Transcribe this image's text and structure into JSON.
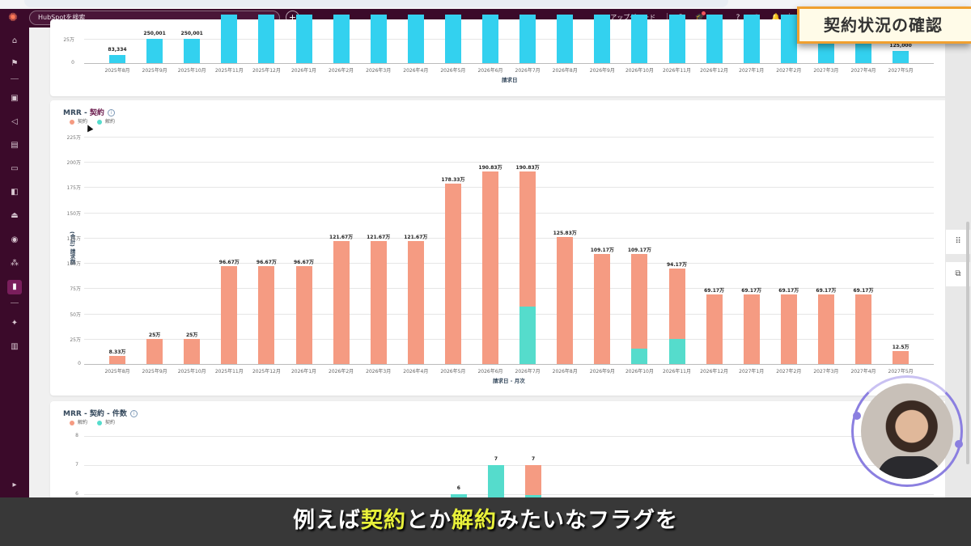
{
  "topbar": {
    "search_placeholder": "HubSpotを検索",
    "upgrade_label": "アップグレード",
    "icons": [
      "phone-icon",
      "academy-icon",
      "marketplace-icon",
      "help-icon",
      "settings-icon",
      "notifications-icon"
    ]
  },
  "overlay_title": "契約状況の確認",
  "sidebar": {
    "items": [
      "home-icon",
      "bookmark-icon",
      "contacts-icon",
      "marketing-icon",
      "content-icon",
      "commerce-icon",
      "service-icon",
      "automation-icon",
      "data-icon",
      "integrations-icon",
      "reports-icon",
      "breeze-icon",
      "workspaces-icon"
    ],
    "active": "reports-icon",
    "expand_icon": "expand-sidebar-icon"
  },
  "colors": {
    "brand_dark": "#3b0a2a",
    "bar_cyan": "#33d1ef",
    "contract_salmon": "#f59b82",
    "cancel_teal": "#55dccc",
    "banner_border": "#f0a030",
    "subtitle_highlight": "#e8f03a"
  },
  "chart_data": [
    {
      "type": "bar",
      "title": "",
      "xlabel": "請求日",
      "ylabel": "",
      "categories": [
        "2025年8月",
        "2025年9月",
        "2025年10月",
        "2025年11月",
        "2025年12月",
        "2026年1月",
        "2026年2月",
        "2026年3月",
        "2026年4月",
        "2026年5月",
        "2026年6月",
        "2026年7月",
        "2026年8月",
        "2026年9月",
        "2026年10月",
        "2026年11月",
        "2026年12月",
        "2027年1月",
        "2027年2月",
        "2027年3月",
        "2027年4月",
        "2027年5月"
      ],
      "values": [
        83334,
        250001,
        250001,
        null,
        null,
        null,
        null,
        null,
        null,
        null,
        null,
        null,
        null,
        null,
        null,
        null,
        null,
        null,
        null,
        null,
        null,
        125000
      ],
      "value_labels": [
        "83,334",
        "250,001",
        "250,001",
        "",
        "",
        "",
        "",
        "",
        "",
        "",
        "",
        "",
        "",
        "",
        "",
        "",
        "",
        "",
        "",
        "",
        "",
        "125,000"
      ],
      "yticks_visible": [
        "0",
        "25万"
      ],
      "note": "Chart is scrolled; only the lower portion is visible, taller bars are clipped by the top of the viewport."
    },
    {
      "type": "bar",
      "stacked": true,
      "title": "MRR - 契約",
      "xlabel": "請求日 - 月次",
      "ylabel": "(合計) 請求額",
      "ylim": [
        0,
        2250000
      ],
      "yticks": [
        "0",
        "25万",
        "50万",
        "75万",
        "100万",
        "125万",
        "150万",
        "175万",
        "200万",
        "225万"
      ],
      "legend": [
        "契約",
        "解約"
      ],
      "categories": [
        "2025年8月",
        "2025年9月",
        "2025年10月",
        "2025年11月",
        "2025年12月",
        "2026年1月",
        "2026年2月",
        "2026年3月",
        "2026年4月",
        "2026年5月",
        "2026年6月",
        "2026年7月",
        "2026年8月",
        "2026年9月",
        "2026年10月",
        "2026年11月",
        "2026年12月",
        "2027年1月",
        "2027年2月",
        "2027年3月",
        "2027年4月",
        "2027年5月"
      ],
      "series": [
        {
          "name": "契約",
          "values": [
            83300,
            250000,
            250000,
            966700,
            966700,
            966700,
            1216700,
            1216700,
            1216700,
            1783300,
            1908300,
            1338300,
            1258300,
            1091700,
            941700,
            691700,
            691700,
            691700,
            691700,
            691700,
            691700,
            125000
          ]
        },
        {
          "name": "解約",
          "values": [
            0,
            0,
            0,
            0,
            0,
            0,
            0,
            0,
            0,
            0,
            0,
            570000,
            0,
            0,
            150000,
            250000,
            0,
            0,
            0,
            0,
            0,
            0
          ]
        }
      ],
      "totals": [
        83300,
        250000,
        250000,
        966700,
        966700,
        966700,
        1216700,
        1216700,
        1216700,
        1783300,
        1908300,
        1908300,
        1258300,
        1091700,
        1091700,
        941700,
        691700,
        691700,
        691700,
        691700,
        691700,
        125000
      ],
      "total_labels": [
        "8.33万",
        "25万",
        "25万",
        "96.67万",
        "96.67万",
        "96.67万",
        "121.67万",
        "121.67万",
        "121.67万",
        "178.33万",
        "190.83万",
        "190.83万",
        "125.83万",
        "109.17万",
        "109.17万",
        "94.17万",
        "69.17万",
        "69.17万",
        "69.17万",
        "69.17万",
        "69.17万",
        "12.5万"
      ]
    },
    {
      "type": "bar",
      "stacked": true,
      "title": "MRR - 契約 - 件数",
      "legend": [
        "解約",
        "契約"
      ],
      "yticks_visible": [
        "6",
        "7",
        "8"
      ],
      "visible_bars": [
        {
          "category_index": 9,
          "total": 6,
          "label": "6"
        },
        {
          "category_index": 10,
          "total": 7,
          "label": "7"
        },
        {
          "category_index": 11,
          "total": 7,
          "label": "7"
        }
      ],
      "note": "Chart is cut off at the bottom by the subtitle overlay."
    }
  ],
  "card_mrr": {
    "title_prefix": "MRR - ",
    "title_accent": "契約",
    "legend": [
      "契約",
      "解約"
    ],
    "xlabel": "請求日 - 月次",
    "ylabel": "(合計) 請求額"
  },
  "card_count": {
    "title": "MRR - 契約 - 件数",
    "legend": [
      "解約",
      "契約"
    ]
  },
  "card_top": {
    "xlabel": "請求日"
  },
  "right_rail": {
    "icons": [
      "apps-grid-icon",
      "chat-icon"
    ]
  },
  "subtitle": {
    "part1": "例えば",
    "hl1": "契約",
    "part2": "とか",
    "hl2": "解約",
    "part3": "みたいなフラグを"
  }
}
